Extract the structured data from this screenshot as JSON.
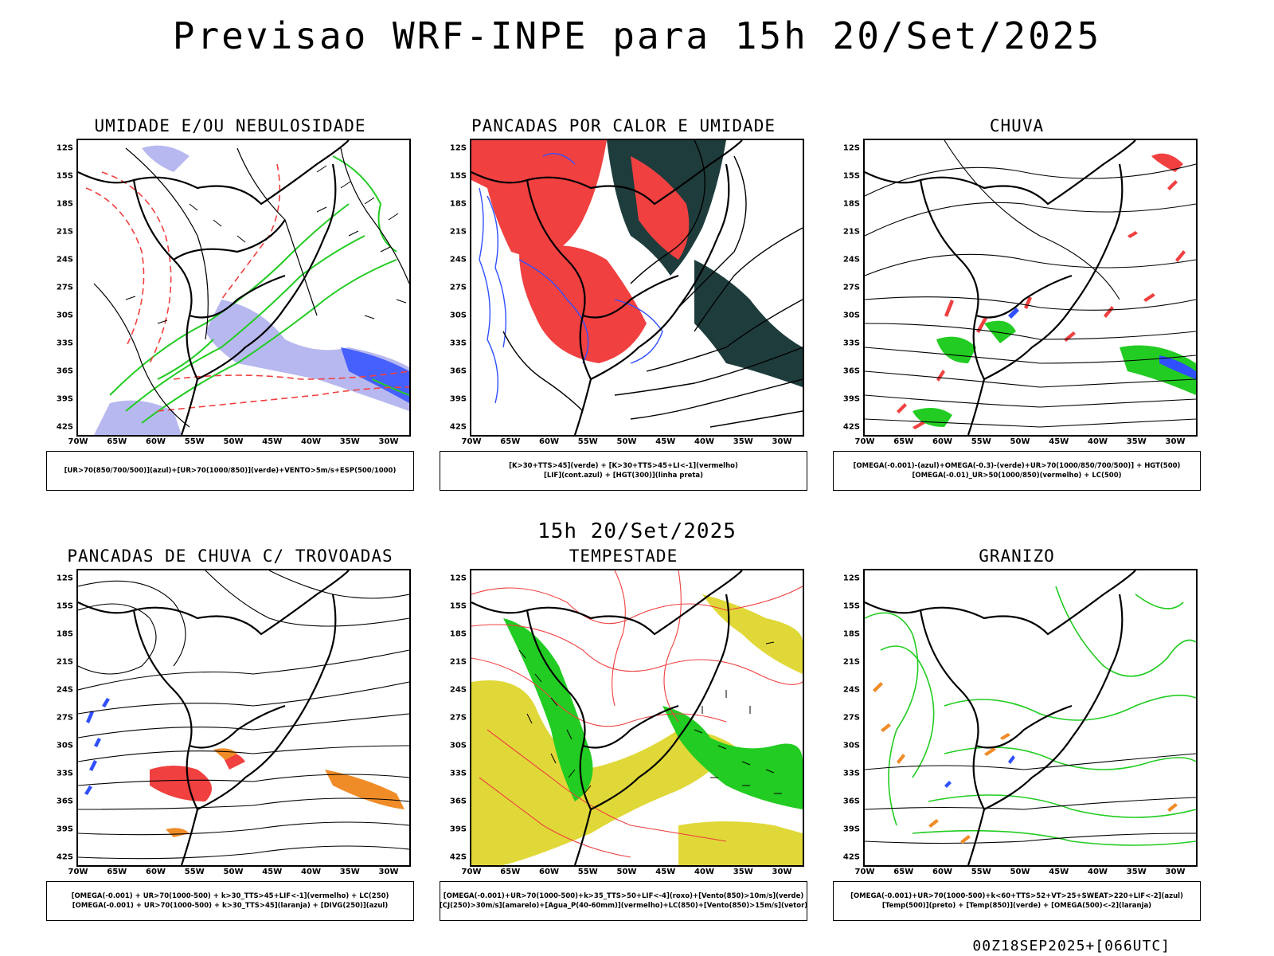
{
  "title": "Previsao WRF-INPE  para 15h 20/Set/2025",
  "middle_title": "15h 20/Set/2025",
  "footer": "00Z18SEP2025+[066UTC]",
  "lat_labels": [
    "12S",
    "15S",
    "18S",
    "21S",
    "24S",
    "27S",
    "30S",
    "33S",
    "36S",
    "39S",
    "42S"
  ],
  "lon_labels": [
    "70W",
    "65W",
    "60W",
    "55W",
    "50W",
    "45W",
    "40W",
    "35W",
    "30W"
  ],
  "panels": [
    {
      "title": "UMIDADE E/OU NEBULOSIDADE",
      "legend": [
        "[UR>70(850/700/500)](azul)+[UR>70(1000/850)](verde)+VENTO>5m/s+ESP(500/1000)"
      ],
      "contour_labels": [
        "1008",
        "1008",
        "1012",
        "1016",
        "1020",
        "1000",
        "1004",
        "1008",
        "1012",
        "1016",
        "570",
        "576",
        "582",
        "588",
        "564"
      ]
    },
    {
      "title": "PANCADAS POR CALOR E UMIDADE",
      "legend": [
        "[K>30+TTS>45](verde) + [K>30+TTS>45+LI<-1](vermelho)",
        "[LIF](cont.azul) + [HGT(300)](linha preta)"
      ],
      "contour_labels": [
        "9600",
        "9600",
        "9520",
        "9600",
        "9520",
        "9440",
        "9360",
        "9280",
        "9200",
        "9120",
        "9200"
      ]
    },
    {
      "title": "CHUVA",
      "legend": [
        "[OMEGA(-0.001)-(azul)+OMEGA(-0.3)-(verde)+UR>70(1000/850/700/500)] + HGT(500)",
        "[OMEGA(-0.01)_UR>50(1000/850)(vermelho) + LC(500)"
      ],
      "contour_labels": [
        "582",
        "576",
        "570",
        "573",
        "567",
        "564",
        "561",
        "585",
        "579"
      ]
    },
    {
      "title": "PANCADAS DE CHUVA C/ TROVOADAS",
      "legend": [
        "[OMEGA(-0.001) + UR>70(1000-500) + k>30_TTS>45+LIF<-1](vermelho) + LC(250)",
        "[OMEGA(-0.001) + UR>70(1000-500) + k>30_TTS>45](laranja) + [DIVG(250)](azul)"
      ],
      "contour_labels": []
    },
    {
      "title": "TEMPESTADE",
      "legend": [
        "[OMEGA(-0.001)+UR>70(1000-500)+k>35_TTS>50+LIF<-4](roxo)+[Vento(850)>10m/s](verde)",
        "[CJ(250)>30m/s](amarelo)+[Agua_P(40-60mm)](vermelho)+LC(850)+[Vento(850)>15m/s](vetor)"
      ],
      "contour_labels": []
    },
    {
      "title": "GRANIZO",
      "legend": [
        "[OMEGA(-0.001)+UR>70(1000-500)+k<60+TTS>52+VT>25+SWEAT>220+LIF<-2](azul)",
        "[Temp(500)](preto) + [Temp(850)](verde) + [OMEGA(500)<-2](laranja)"
      ],
      "contour_labels": [
        "12",
        "12",
        "18",
        "18",
        "24"
      ]
    }
  ],
  "colors": {
    "blue": "#3050ff",
    "lightblue": "#b8b8f0",
    "green": "#22cc22",
    "red": "#f04040",
    "darkteal": "#1e3c3c",
    "yellow": "#e0d838",
    "orange": "#f08c28"
  }
}
